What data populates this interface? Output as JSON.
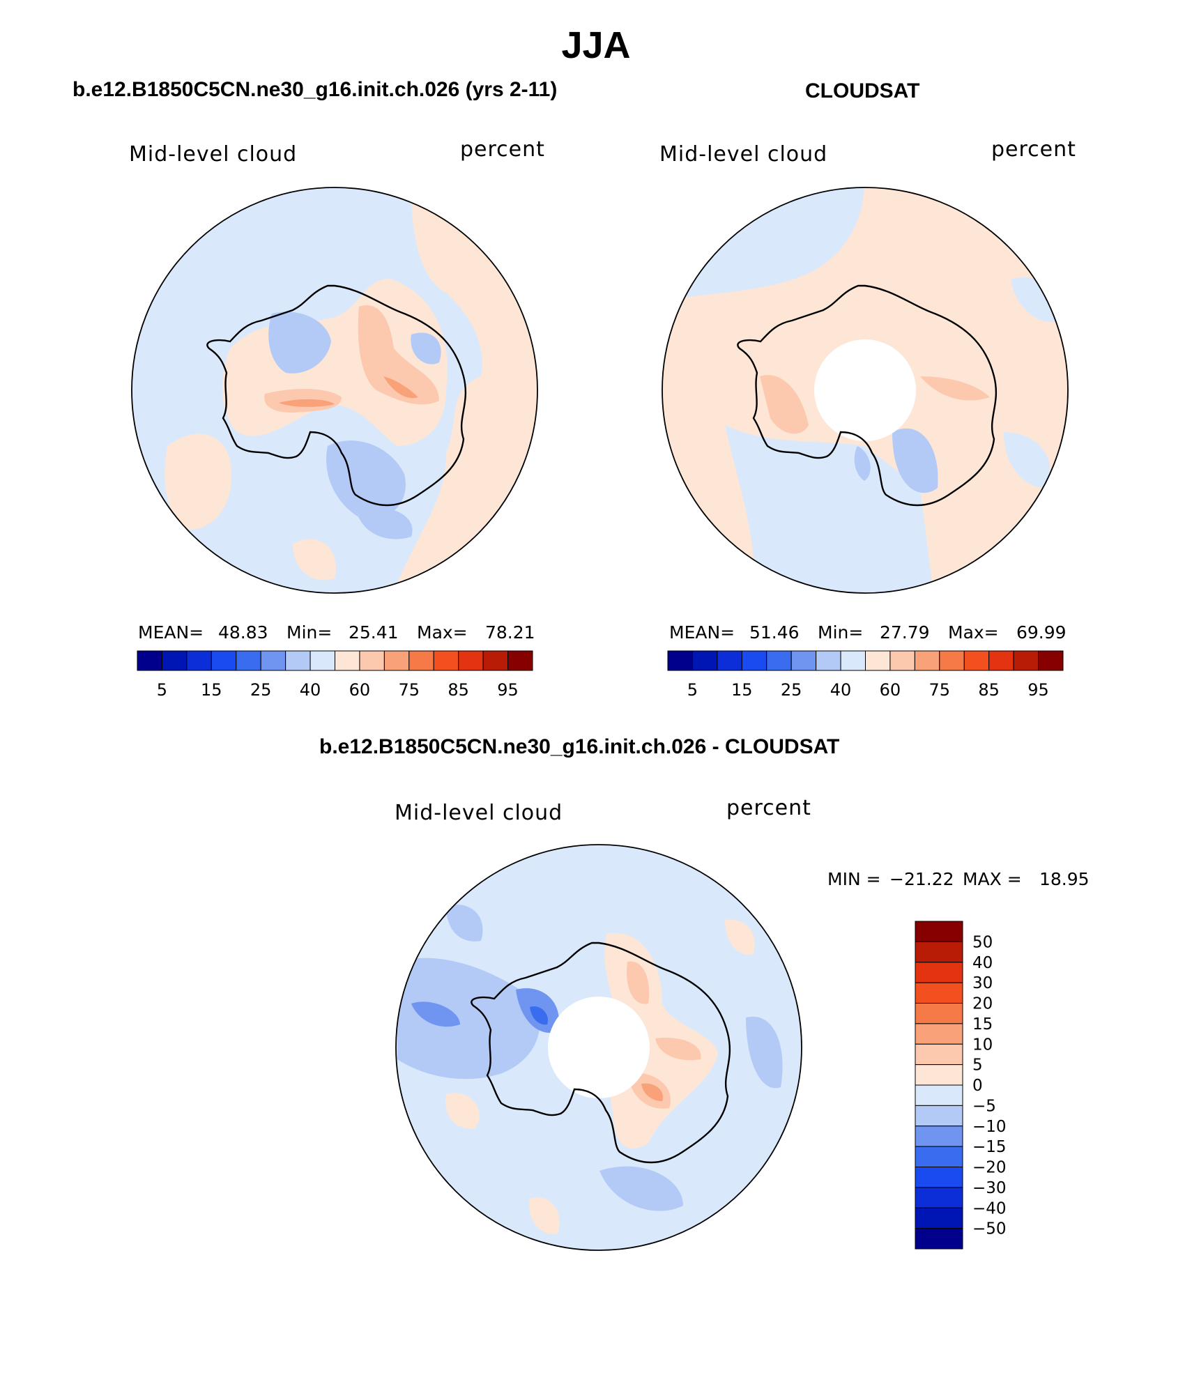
{
  "figure": {
    "title": "JJA",
    "difference_title": "b.e12.B1850C5CN.ne30_g16.init.ch.026 - CLOUDSAT"
  },
  "panels": [
    {
      "id": "model",
      "heading": "b.e12.B1850C5CN.ne30_g16.init.ch.026 (yrs 2-11)",
      "variable": "Mid-level cloud",
      "units": "percent",
      "stats": {
        "mean_label": "MEAN=",
        "mean": "48.83",
        "min_label": "Min=",
        "min": "25.41",
        "max_label": "Max=",
        "max": "78.21"
      },
      "colorbar_labels": [
        "5",
        "15",
        "25",
        "40",
        "60",
        "75",
        "85",
        "95"
      ]
    },
    {
      "id": "obs",
      "heading": "CLOUDSAT",
      "variable": "Mid-level cloud",
      "units": "percent",
      "stats": {
        "mean_label": "MEAN=",
        "mean": "51.46",
        "min_label": "Min=",
        "min": "27.79",
        "max_label": "Max=",
        "max": "69.99"
      },
      "colorbar_labels": [
        "5",
        "15",
        "25",
        "40",
        "60",
        "75",
        "85",
        "95"
      ]
    },
    {
      "id": "diff",
      "variable": "Mid-level cloud",
      "units": "percent",
      "stats": {
        "min_label": "MIN =",
        "min": "−21.22",
        "max_label": "MAX =",
        "max": "18.95"
      },
      "colorbar_labels": [
        "50",
        "40",
        "30",
        "20",
        "15",
        "10",
        "5",
        "0",
        "−5",
        "−10",
        "−15",
        "−20",
        "−30",
        "−40",
        "−50"
      ]
    }
  ],
  "colors": {
    "sequential": [
      "#00008c",
      "#0016b4",
      "#0b2ed8",
      "#1a4bf0",
      "#3a6cf0",
      "#6f95f0",
      "#b3caf6",
      "#d9e9fb",
      "#fde6d6",
      "#fcc9ae",
      "#f9a27a",
      "#f67948",
      "#f35020",
      "#e43310",
      "#b81c06",
      "#860000"
    ],
    "diverging": [
      "#860000",
      "#b81c06",
      "#e43310",
      "#f35020",
      "#f67948",
      "#f9a27a",
      "#fcc9ae",
      "#fde6d6",
      "#d9e9fb",
      "#b3caf6",
      "#6f95f0",
      "#3a6cf0",
      "#1a4bf0",
      "#0b2ed8",
      "#0016b4",
      "#00008c"
    ]
  }
}
